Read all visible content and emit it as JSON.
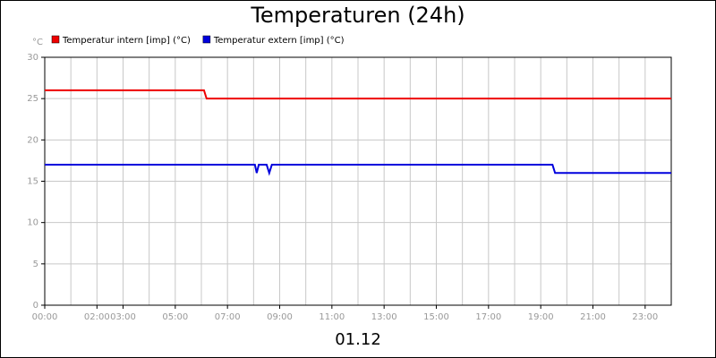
{
  "chart_data": {
    "type": "line",
    "title": "Temperaturen (24h)",
    "y_label": "°C",
    "x_label": "01.12",
    "xlim": [
      0,
      24
    ],
    "ylim": [
      0,
      30
    ],
    "yticks": [
      0,
      5,
      10,
      15,
      20,
      25,
      30
    ],
    "xticks": [
      {
        "value": 0,
        "label": "00:00"
      },
      {
        "value": 2,
        "label": "02:00"
      },
      {
        "value": 3,
        "label": "03:00"
      },
      {
        "value": 5,
        "label": "05:00"
      },
      {
        "value": 7,
        "label": "07:00"
      },
      {
        "value": 9,
        "label": "09:00"
      },
      {
        "value": 11,
        "label": "11:00"
      },
      {
        "value": 13,
        "label": "13:00"
      },
      {
        "value": 15,
        "label": "15:00"
      },
      {
        "value": 17,
        "label": "17:00"
      },
      {
        "value": 19,
        "label": "19:00"
      },
      {
        "value": 21,
        "label": "21:00"
      },
      {
        "value": 23,
        "label": "23:00"
      }
    ],
    "xgrid": [
      1,
      2,
      3,
      4,
      5,
      6,
      7,
      8,
      9,
      10,
      11,
      12,
      13,
      14,
      15,
      16,
      17,
      18,
      19,
      20,
      21,
      22,
      23
    ],
    "grid": true,
    "series": [
      {
        "name": "Temperatur intern [imp] (°C)",
        "color": "#ee0000",
        "x": [
          0,
          6.1,
          6.2,
          24
        ],
        "values": [
          26,
          26,
          25,
          25
        ]
      },
      {
        "name": "Temperatur extern [imp] (°C)",
        "color": "#0000dd",
        "x": [
          0,
          8.05,
          8.12,
          8.2,
          8.5,
          8.6,
          8.7,
          19.45,
          19.55,
          24
        ],
        "values": [
          17,
          17,
          16,
          17,
          17,
          16,
          17,
          17,
          16,
          16
        ]
      }
    ]
  }
}
